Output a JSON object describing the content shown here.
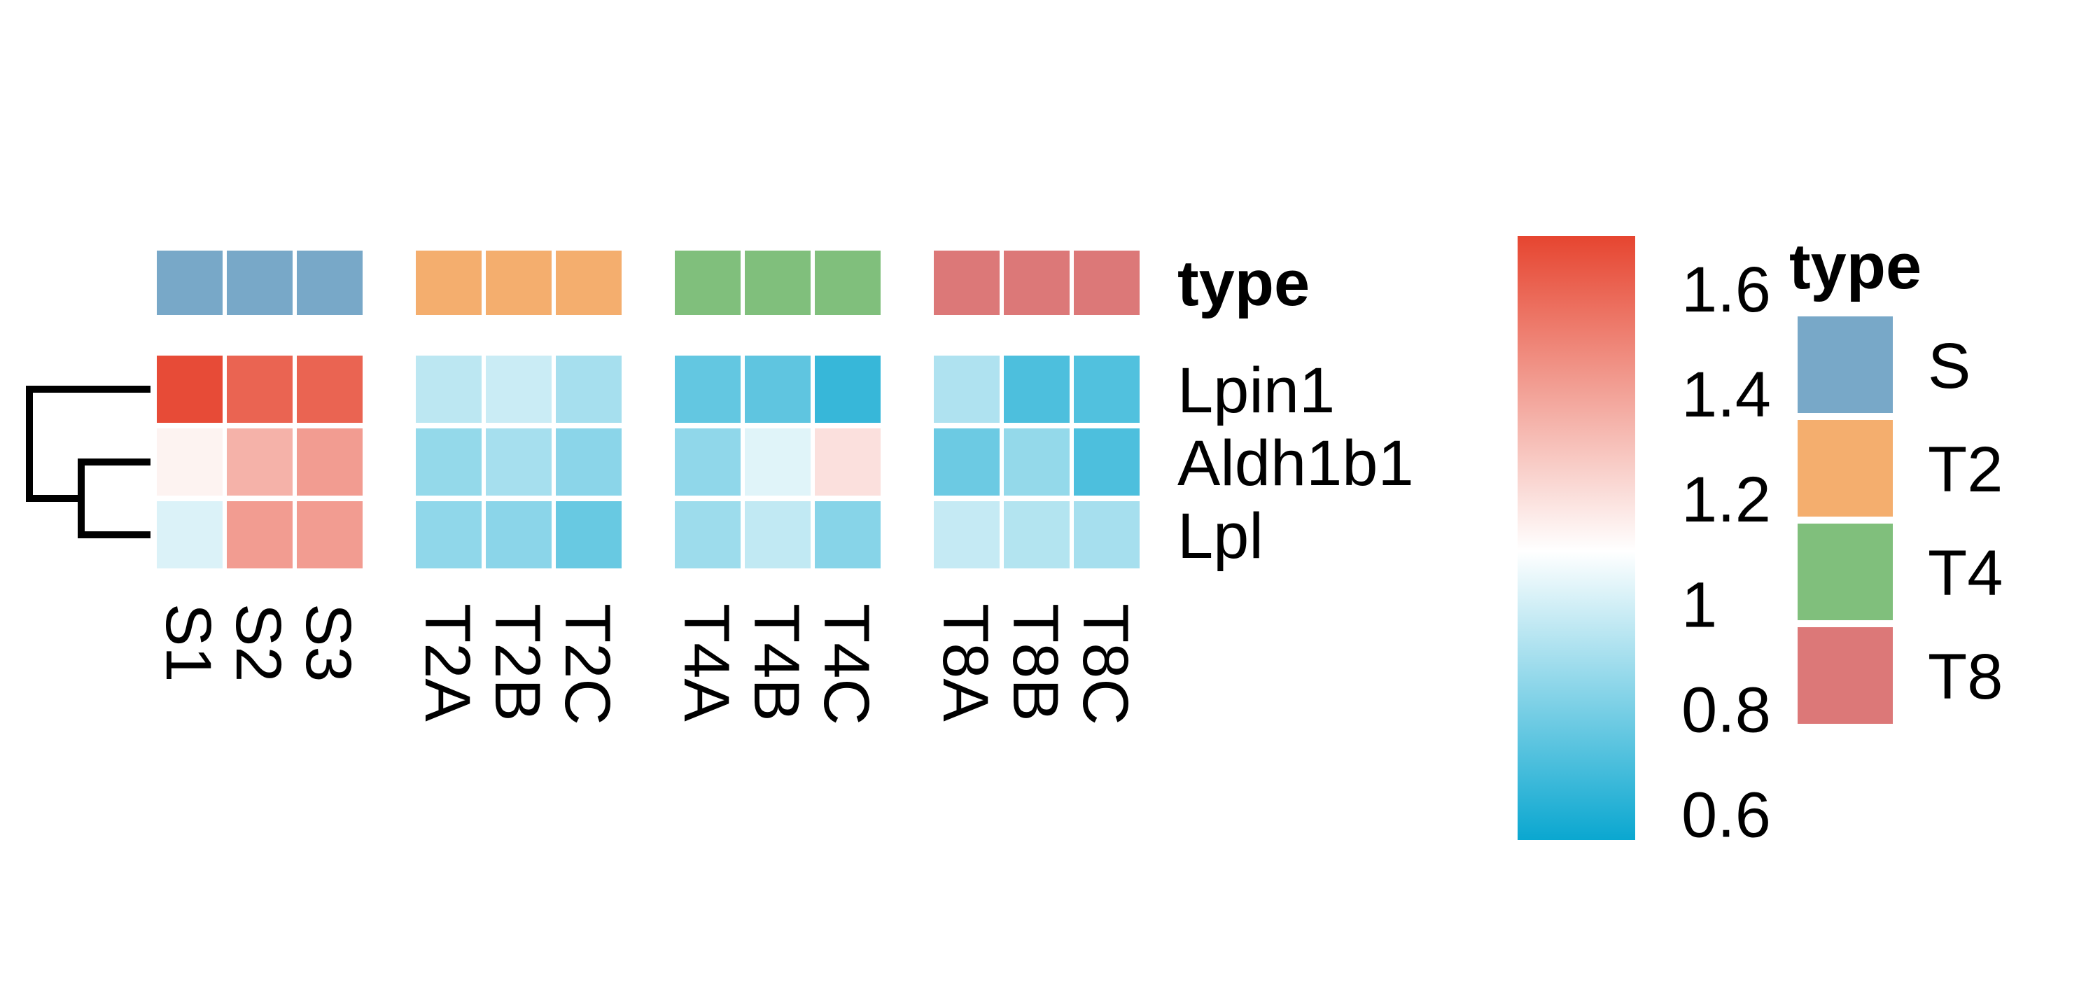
{
  "chart_data": {
    "type": "heatmap",
    "title": "",
    "annotation": {
      "label": "type",
      "colors": {
        "S": "#78a8c8",
        "T2": "#f4ae6e",
        "T4": "#80bf7c",
        "T8": "#dc7878"
      }
    },
    "columns": [
      "S1",
      "S2",
      "S3",
      "T2A",
      "T2B",
      "T2C",
      "T4A",
      "T4B",
      "T4C",
      "T8A",
      "T8B",
      "T8C"
    ],
    "column_groups": [
      "S",
      "S",
      "S",
      "T2",
      "T2",
      "T2",
      "T4",
      "T4",
      "T4",
      "T8",
      "T8",
      "T8"
    ],
    "rows": [
      "Lpin1",
      "Aldh1b1",
      "Lpl"
    ],
    "values": [
      [
        1.68,
        1.6,
        1.6,
        0.95,
        0.98,
        0.9,
        0.75,
        0.74,
        0.65,
        0.92,
        0.7,
        0.71
      ],
      [
        1.14,
        1.35,
        1.42,
        0.86,
        0.9,
        0.84,
        0.85,
        1.03,
        1.2,
        0.77,
        0.86,
        0.7
      ],
      [
        1.02,
        1.42,
        1.42,
        0.85,
        0.84,
        0.76,
        0.88,
        0.96,
        0.83,
        0.97,
        0.93,
        0.9
      ]
    ],
    "color_scale": {
      "min": 0.55,
      "mid": 1.1,
      "max": 1.7,
      "low_color": "#0aa7d0",
      "mid_color": "#ffffff",
      "high_color": "#e64530",
      "ticks": [
        "0.6",
        "0.8",
        "1",
        "1.2",
        "1.4",
        "1.6"
      ],
      "tick_values": [
        0.6,
        0.8,
        1.0,
        1.2,
        1.4,
        1.6
      ]
    },
    "row_dendrogram": {
      "merges": [
        [
          "Aldh1b1",
          "Lpl"
        ],
        [
          "Lpin1",
          "Aldh1b1+Lpl"
        ]
      ]
    },
    "legend": {
      "title": "type",
      "placement": "right",
      "entries": [
        "S",
        "T2",
        "T4",
        "T8"
      ]
    }
  }
}
